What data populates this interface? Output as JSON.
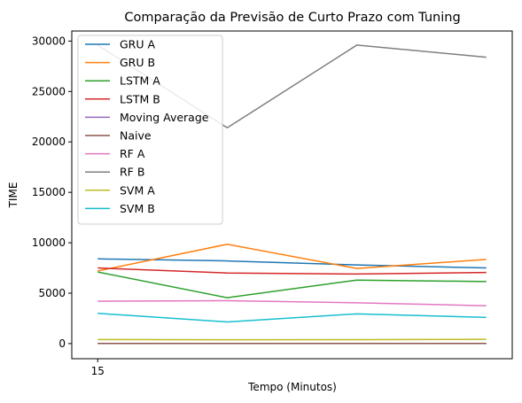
{
  "chart_data": {
    "type": "line",
    "title": "Comparação da Previsão de Curto Prazo com Tuning",
    "xlabel": "Tempo (Minutos)",
    "ylabel": "TIME",
    "x": [
      0,
      1,
      2,
      3
    ],
    "x_tick_labels": [
      {
        "x": 0,
        "label": "15"
      }
    ],
    "xlim": [
      -0.2,
      3.2
    ],
    "ylim": [
      -1500,
      31000
    ],
    "y_ticks": [
      0,
      5000,
      10000,
      15000,
      20000,
      25000,
      30000
    ],
    "grid": false,
    "legend_position": "upper-left",
    "series": [
      {
        "name": "GRU A",
        "color": "#1f77b4",
        "values": [
          8400,
          8200,
          7800,
          7500
        ]
      },
      {
        "name": "GRU B",
        "color": "#ff7f0e",
        "values": [
          7200,
          9850,
          7450,
          8350
        ]
      },
      {
        "name": "LSTM A",
        "color": "#2ca02c",
        "values": [
          7100,
          4550,
          6300,
          6150
        ]
      },
      {
        "name": "LSTM B",
        "color": "#d62728",
        "values": [
          7500,
          7000,
          6900,
          7050
        ]
      },
      {
        "name": "Moving Average",
        "color": "#9467bd",
        "values": [
          20,
          20,
          20,
          20
        ]
      },
      {
        "name": "Naive",
        "color": "#8c564b",
        "values": [
          10,
          10,
          10,
          10
        ]
      },
      {
        "name": "RF A",
        "color": "#e377c2",
        "values": [
          4200,
          4250,
          4050,
          3750
        ]
      },
      {
        "name": "RF B",
        "color": "#7f7f7f",
        "values": [
          29600,
          21400,
          29600,
          28400
        ]
      },
      {
        "name": "SVM A",
        "color": "#bcbd22",
        "values": [
          400,
          380,
          390,
          420
        ]
      },
      {
        "name": "SVM B",
        "color": "#17becf",
        "values": [
          3000,
          2150,
          2950,
          2600
        ]
      }
    ]
  }
}
